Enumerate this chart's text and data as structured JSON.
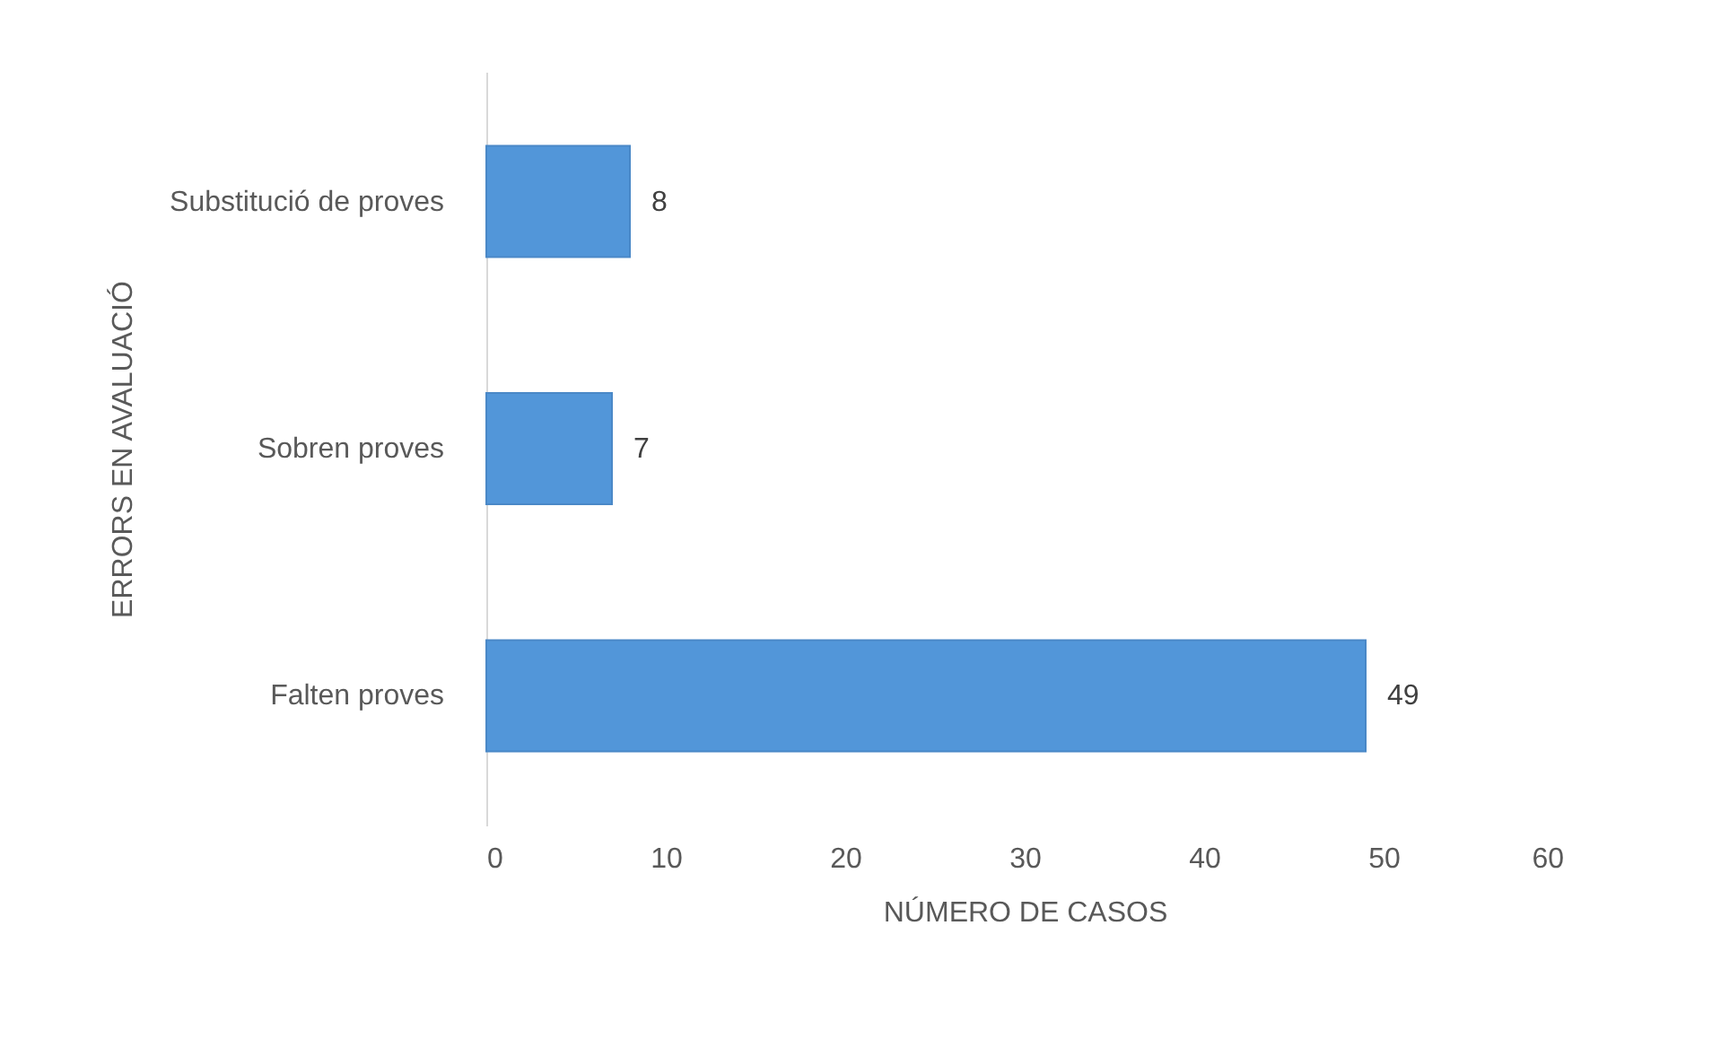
{
  "chart_data": {
    "type": "bar",
    "orientation": "horizontal",
    "xlabel": "NÚMERO DE CASOS",
    "ylabel": "ERRORS EN AVALUACIÓ",
    "categories": [
      "Substitució de proves",
      "Sobren proves",
      "Falten proves"
    ],
    "values": [
      8,
      7,
      49
    ],
    "color": "#5296d9",
    "xlim": [
      0,
      60
    ],
    "xticks": [
      0,
      10,
      20,
      30,
      40,
      50,
      60
    ],
    "grid": false,
    "data_labels": true
  }
}
